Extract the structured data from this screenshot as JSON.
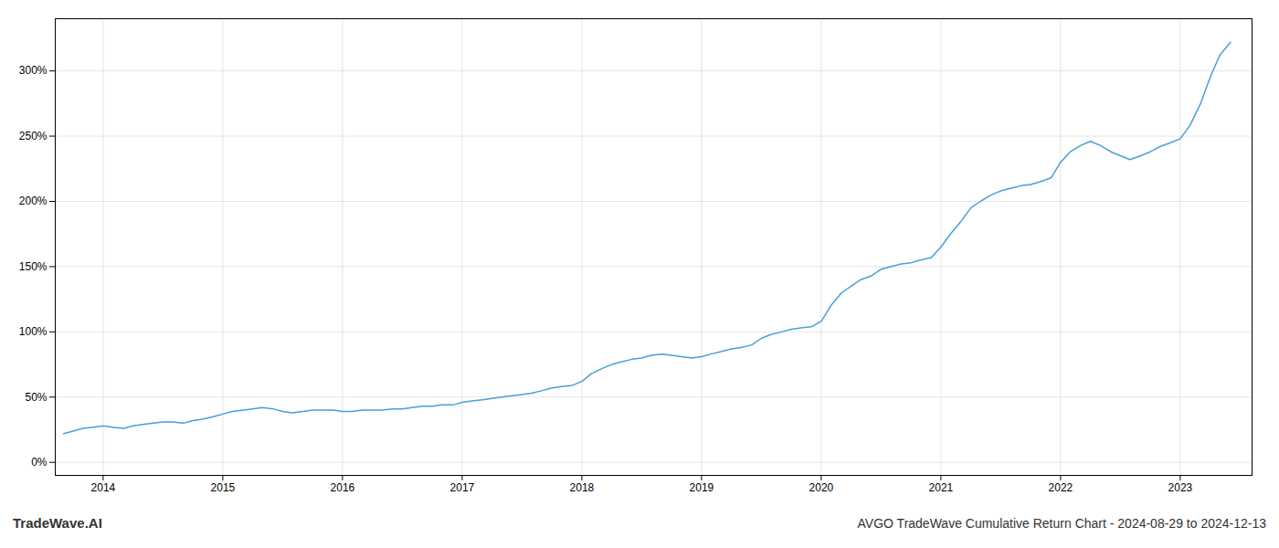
{
  "chart_data": {
    "type": "line",
    "title": "AVGO TradeWave Cumulative Return Chart - 2024-08-29 to 2024-12-13",
    "annotations": [
      "TradeWave.AI"
    ],
    "color": "#4a9fd4",
    "grid": true,
    "xlim": [
      2013.6,
      2023.6
    ],
    "ylim": [
      -10,
      340
    ],
    "xticks": [
      2014,
      2015,
      2016,
      2017,
      2018,
      2019,
      2020,
      2021,
      2022,
      2023
    ],
    "yticks": [
      {
        "value": 0,
        "label": "0%"
      },
      {
        "value": 50,
        "label": "50%"
      },
      {
        "value": 100,
        "label": "100%"
      },
      {
        "value": 150,
        "label": "150%"
      },
      {
        "value": 200,
        "label": "200%"
      },
      {
        "value": 250,
        "label": "250%"
      },
      {
        "value": 300,
        "label": "300%"
      }
    ],
    "x": [
      2013.67,
      2013.75,
      2013.83,
      2013.92,
      2014.0,
      2014.08,
      2014.17,
      2014.25,
      2014.33,
      2014.42,
      2014.5,
      2014.58,
      2014.67,
      2014.75,
      2014.83,
      2014.92,
      2015.0,
      2015.08,
      2015.17,
      2015.25,
      2015.33,
      2015.42,
      2015.5,
      2015.58,
      2015.67,
      2015.75,
      2015.83,
      2015.92,
      2016.0,
      2016.08,
      2016.17,
      2016.25,
      2016.33,
      2016.42,
      2016.5,
      2016.58,
      2016.67,
      2016.75,
      2016.83,
      2016.92,
      2017.0,
      2017.08,
      2017.17,
      2017.25,
      2017.33,
      2017.42,
      2017.5,
      2017.58,
      2017.67,
      2017.75,
      2017.83,
      2017.92,
      2018.0,
      2018.08,
      2018.17,
      2018.25,
      2018.33,
      2018.42,
      2018.5,
      2018.58,
      2018.67,
      2018.75,
      2018.83,
      2018.92,
      2019.0,
      2019.08,
      2019.17,
      2019.25,
      2019.33,
      2019.42,
      2019.5,
      2019.58,
      2019.67,
      2019.75,
      2019.83,
      2019.92,
      2020.0,
      2020.08,
      2020.17,
      2020.25,
      2020.33,
      2020.42,
      2020.5,
      2020.58,
      2020.67,
      2020.75,
      2020.83,
      2020.92,
      2021.0,
      2021.08,
      2021.17,
      2021.25,
      2021.33,
      2021.42,
      2021.5,
      2021.58,
      2021.67,
      2021.75,
      2021.83,
      2021.92,
      2022.0,
      2022.08,
      2022.17,
      2022.25,
      2022.33,
      2022.42,
      2022.5,
      2022.58,
      2022.67,
      2022.75,
      2022.83,
      2022.92,
      2023.0,
      2023.08,
      2023.17,
      2023.25,
      2023.33,
      2023.42
    ],
    "values": [
      22,
      24,
      26,
      27,
      28,
      27,
      26,
      28,
      29,
      30,
      31,
      31,
      30,
      32,
      33,
      35,
      37,
      39,
      40,
      41,
      42,
      41,
      39,
      38,
      39,
      40,
      40,
      40,
      39,
      39,
      40,
      40,
      40,
      41,
      41,
      42,
      43,
      43,
      44,
      44,
      46,
      47,
      48,
      49,
      50,
      51,
      52,
      53,
      55,
      57,
      58,
      59,
      62,
      68,
      72,
      75,
      77,
      79,
      80,
      82,
      83,
      82,
      81,
      80,
      81,
      83,
      85,
      87,
      88,
      90,
      95,
      98,
      100,
      102,
      103,
      104,
      108,
      120,
      130,
      135,
      140,
      143,
      148,
      150,
      152,
      153,
      155,
      157,
      165,
      175,
      185,
      195,
      200,
      205,
      208,
      210,
      212,
      213,
      215,
      218,
      230,
      238,
      243,
      246,
      243,
      238,
      235,
      232,
      235,
      238,
      242,
      245,
      248,
      258,
      275,
      295,
      312,
      322
    ]
  }
}
